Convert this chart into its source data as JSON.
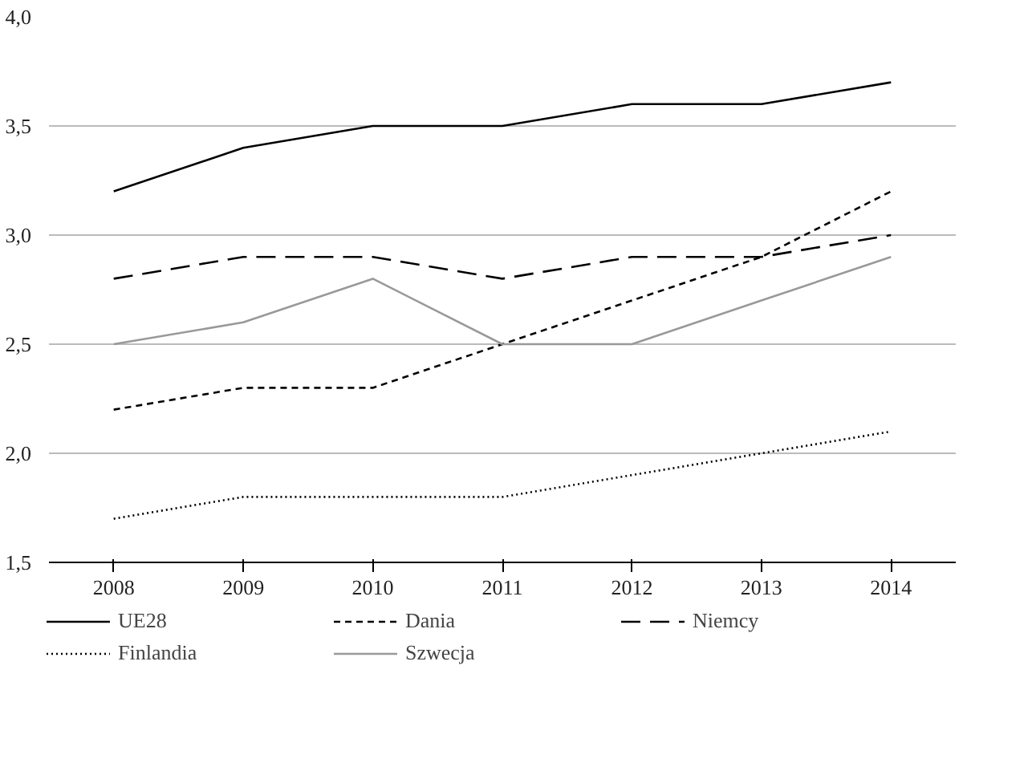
{
  "chart_data": {
    "type": "line",
    "categories": [
      "2008",
      "2009",
      "2010",
      "2011",
      "2012",
      "2013",
      "2014"
    ],
    "ylim": [
      1.5,
      4.0
    ],
    "yticks": [
      {
        "value": 1.5,
        "label": "1,5"
      },
      {
        "value": 2.0,
        "label": "2,0"
      },
      {
        "value": 2.5,
        "label": "2,5"
      },
      {
        "value": 3.0,
        "label": "3,0"
      },
      {
        "value": 3.5,
        "label": "3,5"
      },
      {
        "value": 4.0,
        "label": "4,0"
      }
    ],
    "grid": "y",
    "legend": "bottom",
    "marker": "none",
    "series": [
      {
        "name": "UE28",
        "color": "#000000",
        "line_style": "solid",
        "values": [
          3.2,
          3.4,
          3.5,
          3.5,
          3.6,
          3.6,
          3.7
        ]
      },
      {
        "name": "Dania",
        "color": "#000000",
        "line_style": "dashed",
        "values": [
          2.2,
          2.3,
          2.3,
          2.5,
          2.7,
          2.9,
          3.2
        ]
      },
      {
        "name": "Niemcy",
        "color": "#000000",
        "line_style": "longdash",
        "values": [
          2.8,
          2.9,
          2.9,
          2.8,
          2.9,
          2.9,
          3.0
        ]
      },
      {
        "name": "Finlandia",
        "color": "#000000",
        "line_style": "dotted",
        "values": [
          1.7,
          1.8,
          1.8,
          1.8,
          1.9,
          2.0,
          2.1
        ]
      },
      {
        "name": "Szwecja",
        "color": "#999999",
        "line_style": "solid",
        "values": [
          2.5,
          2.6,
          2.8,
          2.5,
          2.5,
          2.7,
          2.9
        ]
      }
    ]
  }
}
